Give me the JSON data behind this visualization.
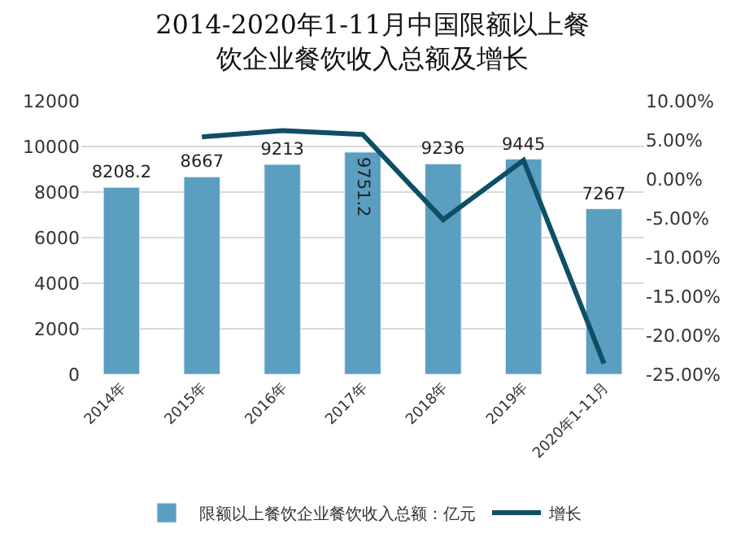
{
  "chart_data": {
    "type": "bar",
    "title": "2014-2020年1-11月中国限额以上餐饮企业餐饮收入总额及增长",
    "categories": [
      "2014年",
      "2015年",
      "2016年",
      "2017年",
      "2018年",
      "2019年",
      "2020年1-11月"
    ],
    "series": [
      {
        "name": "限额以上餐饮企业餐饮收入总额：亿元",
        "color": "#5a9ec0",
        "values": [
          8208.2,
          8667,
          9213,
          9751.2,
          9236,
          9445,
          7267
        ],
        "value_labels": [
          "8208.2",
          "8667",
          "9213",
          "9751.2",
          "9236",
          "9445",
          "7267"
        ]
      },
      {
        "name": "增长",
        "type": "line",
        "axis": "y2",
        "color": "#0e4f66",
        "values": [
          null,
          5.4,
          6.2,
          5.7,
          -5.2,
          2.4,
          -23.6
        ]
      }
    ],
    "ylim": [
      0,
      12000
    ],
    "yticks": [
      0,
      2000,
      4000,
      6000,
      8000,
      10000,
      12000
    ],
    "y2lim": [
      -25,
      10
    ],
    "y2ticks": [
      {
        "value": -25,
        "label": "-25.00%"
      },
      {
        "value": -20,
        "label": "-20.00%"
      },
      {
        "value": -15,
        "label": "-15.00%"
      },
      {
        "value": -10,
        "label": "-10.00%"
      },
      {
        "value": -5,
        "label": "-5.00%"
      },
      {
        "value": 0,
        "label": "0.00%"
      },
      {
        "value": 5,
        "label": "5.00%"
      },
      {
        "value": 10,
        "label": "10.00%"
      }
    ],
    "grid": "y",
    "legend": "bottom",
    "marker": "none"
  }
}
